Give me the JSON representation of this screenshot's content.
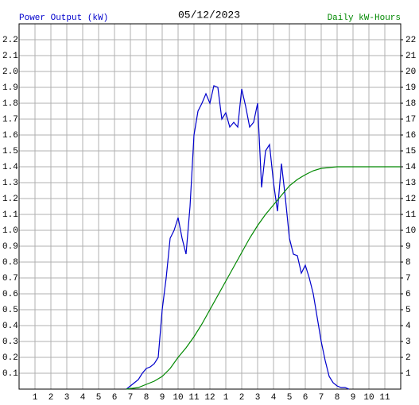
{
  "chart_data": {
    "type": "line",
    "title": "05/12/2023",
    "y_label": "Power Output (kW)",
    "y2_label": "Daily kW-Hours",
    "xlim": [
      0,
      24
    ],
    "xticks": [
      1,
      2,
      3,
      4,
      5,
      6,
      7,
      8,
      9,
      10,
      11,
      12,
      {
        "value": 13,
        "label": "1"
      },
      {
        "value": 14,
        "label": "2"
      },
      {
        "value": 15,
        "label": "3"
      },
      {
        "value": 16,
        "label": "4"
      },
      {
        "value": 17,
        "label": "5"
      },
      {
        "value": 18,
        "label": "6"
      },
      {
        "value": 19,
        "label": "7"
      },
      {
        "value": 20,
        "label": "8"
      },
      {
        "value": 21,
        "label": "9"
      },
      {
        "value": 22,
        "label": "10"
      },
      {
        "value": 23,
        "label": "11"
      }
    ],
    "ylim": [
      0,
      2.3
    ],
    "yticks": [
      0.1,
      0.2,
      0.3,
      0.4,
      0.5,
      0.6,
      0.7,
      0.8,
      0.9,
      {
        "value": 1,
        "label": "1.0"
      },
      1.1,
      1.2,
      1.3,
      1.4,
      1.5,
      1.6,
      1.7,
      1.8,
      1.9,
      {
        "value": 2,
        "label": "2.0"
      },
      2.1,
      2.2
    ],
    "y2lim": [
      0,
      23
    ],
    "y2ticks": [
      1,
      2,
      3,
      4,
      5,
      6,
      7,
      8,
      9,
      10,
      11,
      12,
      13,
      14,
      15,
      16,
      17,
      18,
      19,
      20,
      21,
      22
    ],
    "grid": true,
    "series": [
      {
        "name": "Power Output (kW)",
        "color": "#0000cc",
        "x": [
          6.75,
          7,
          7.25,
          7.5,
          7.75,
          8,
          8.25,
          8.5,
          8.75,
          9,
          9.25,
          9.5,
          9.75,
          10,
          10.25,
          10.5,
          10.75,
          11,
          11.25,
          11.5,
          11.75,
          12,
          12.25,
          12.5,
          12.75,
          13,
          13.25,
          13.5,
          13.75,
          14,
          14.25,
          14.5,
          14.75,
          15,
          15.25,
          15.5,
          15.75,
          16,
          16.25,
          16.5,
          16.75,
          17,
          17.25,
          17.5,
          17.75,
          18,
          18.25,
          18.5,
          18.75,
          19,
          19.25,
          19.5,
          19.75,
          20,
          20.25,
          20.5,
          20.75
        ],
        "values": [
          0,
          0.02,
          0.04,
          0.06,
          0.1,
          0.13,
          0.14,
          0.16,
          0.2,
          0.5,
          0.7,
          0.95,
          1.0,
          1.08,
          0.95,
          0.85,
          1.15,
          1.6,
          1.75,
          1.8,
          1.86,
          1.8,
          1.91,
          1.9,
          1.7,
          1.74,
          1.65,
          1.68,
          1.65,
          1.89,
          1.78,
          1.65,
          1.68,
          1.8,
          1.27,
          1.5,
          1.54,
          1.3,
          1.12,
          1.42,
          1.2,
          0.95,
          0.85,
          0.84,
          0.73,
          0.78,
          0.7,
          0.6,
          0.45,
          0.3,
          0.18,
          0.08,
          0.04,
          0.02,
          0.01,
          0.01,
          0
        ]
      },
      {
        "name": "Daily kW-Hours",
        "color": "#008800",
        "axis": "y2",
        "x": [
          6.75,
          7.5,
          8,
          8.5,
          9,
          9.5,
          10,
          10.5,
          11,
          11.5,
          12,
          12.5,
          13,
          13.5,
          14,
          14.5,
          15,
          15.5,
          16,
          16.5,
          17,
          17.5,
          18,
          18.5,
          19,
          20,
          21,
          24
        ],
        "values": [
          0,
          0.1,
          0.3,
          0.5,
          0.8,
          1.3,
          2.0,
          2.6,
          3.3,
          4.1,
          5.0,
          5.9,
          6.8,
          7.7,
          8.6,
          9.5,
          10.3,
          11.0,
          11.6,
          12.2,
          12.8,
          13.2,
          13.5,
          13.75,
          13.9,
          14.0,
          14.0,
          14.0
        ]
      }
    ]
  }
}
